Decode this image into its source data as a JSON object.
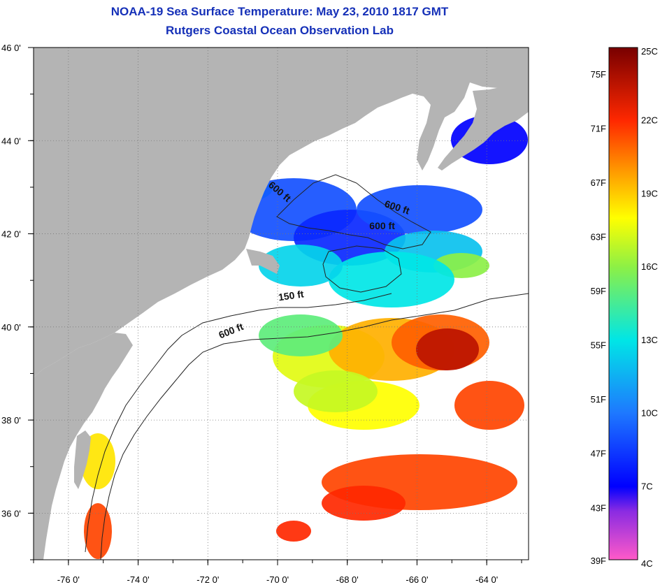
{
  "title": "NOAA-19 Sea Surface Temperature:  May 23, 2010 1817 GMT",
  "subtitle": "Rutgers Coastal Ocean Observation Lab",
  "map": {
    "lon_range": [
      -77.0,
      -62.8
    ],
    "lat_range": [
      35.0,
      46.0
    ],
    "lon_ticks": [
      {
        "lon": -76,
        "label": "-76 0'"
      },
      {
        "lon": -74,
        "label": "-74 0'"
      },
      {
        "lon": -72,
        "label": "-72 0'"
      },
      {
        "lon": -70,
        "label": "-70 0'"
      },
      {
        "lon": -68,
        "label": "-68 0'"
      },
      {
        "lon": -66,
        "label": "-66 0'"
      },
      {
        "lon": -64,
        "label": "-64 0'"
      }
    ],
    "lat_ticks": [
      {
        "lat": 46,
        "label": "46 0'"
      },
      {
        "lat": 44,
        "label": "44 0'"
      },
      {
        "lat": 42,
        "label": "42 0'"
      },
      {
        "lat": 40,
        "label": "40 0'"
      },
      {
        "lat": 38,
        "label": "38 0'"
      },
      {
        "lat": 36,
        "label": "36 0'"
      }
    ],
    "grid": true,
    "land_color": "#b4b4b4",
    "contour_labels": [
      {
        "text": "600 ft",
        "lon": -70.0,
        "lat": 42.85,
        "angle": 40
      },
      {
        "text": "600 ft",
        "lon": -66.6,
        "lat": 42.5,
        "angle": 18
      },
      {
        "text": "600 ft",
        "lon": -67.0,
        "lat": 42.1,
        "angle": 0
      },
      {
        "text": "150 ft",
        "lon": -69.6,
        "lat": 40.6,
        "angle": -8
      },
      {
        "text": "600 ft",
        "lon": -71.3,
        "lat": 39.85,
        "angle": -22
      }
    ]
  },
  "colorbar": {
    "range_c": [
      4,
      25
    ],
    "fahrenheit_labels": [
      {
        "value": 75,
        "label": "75F"
      },
      {
        "value": 71,
        "label": "71F"
      },
      {
        "value": 67,
        "label": "67F"
      },
      {
        "value": 63,
        "label": "63F"
      },
      {
        "value": 59,
        "label": "59F"
      },
      {
        "value": 55,
        "label": "55F"
      },
      {
        "value": 51,
        "label": "51F"
      },
      {
        "value": 47,
        "label": "47F"
      },
      {
        "value": 43,
        "label": "43F"
      },
      {
        "value": 39,
        "label": "39F"
      }
    ],
    "celsius_labels": [
      {
        "value": 25,
        "label": "25C"
      },
      {
        "value": 22,
        "label": "22C"
      },
      {
        "value": 19,
        "label": "19C"
      },
      {
        "value": 16,
        "label": "16C"
      },
      {
        "value": 13,
        "label": "13C"
      },
      {
        "value": 10,
        "label": "10C"
      },
      {
        "value": 7,
        "label": "7C"
      },
      {
        "value": 4,
        "label": "4C"
      }
    ],
    "color_stops": [
      {
        "c": 4,
        "color": "#ff5ac8"
      },
      {
        "c": 6,
        "color": "#8a2be2"
      },
      {
        "c": 7,
        "color": "#0000ff"
      },
      {
        "c": 10,
        "color": "#1e78ff"
      },
      {
        "c": 13,
        "color": "#00e6e6"
      },
      {
        "c": 16,
        "color": "#8cf046"
      },
      {
        "c": 18,
        "color": "#ffff00"
      },
      {
        "c": 20,
        "color": "#ff9600"
      },
      {
        "c": 22,
        "color": "#ff2800"
      },
      {
        "c": 25,
        "color": "#780000"
      }
    ]
  }
}
